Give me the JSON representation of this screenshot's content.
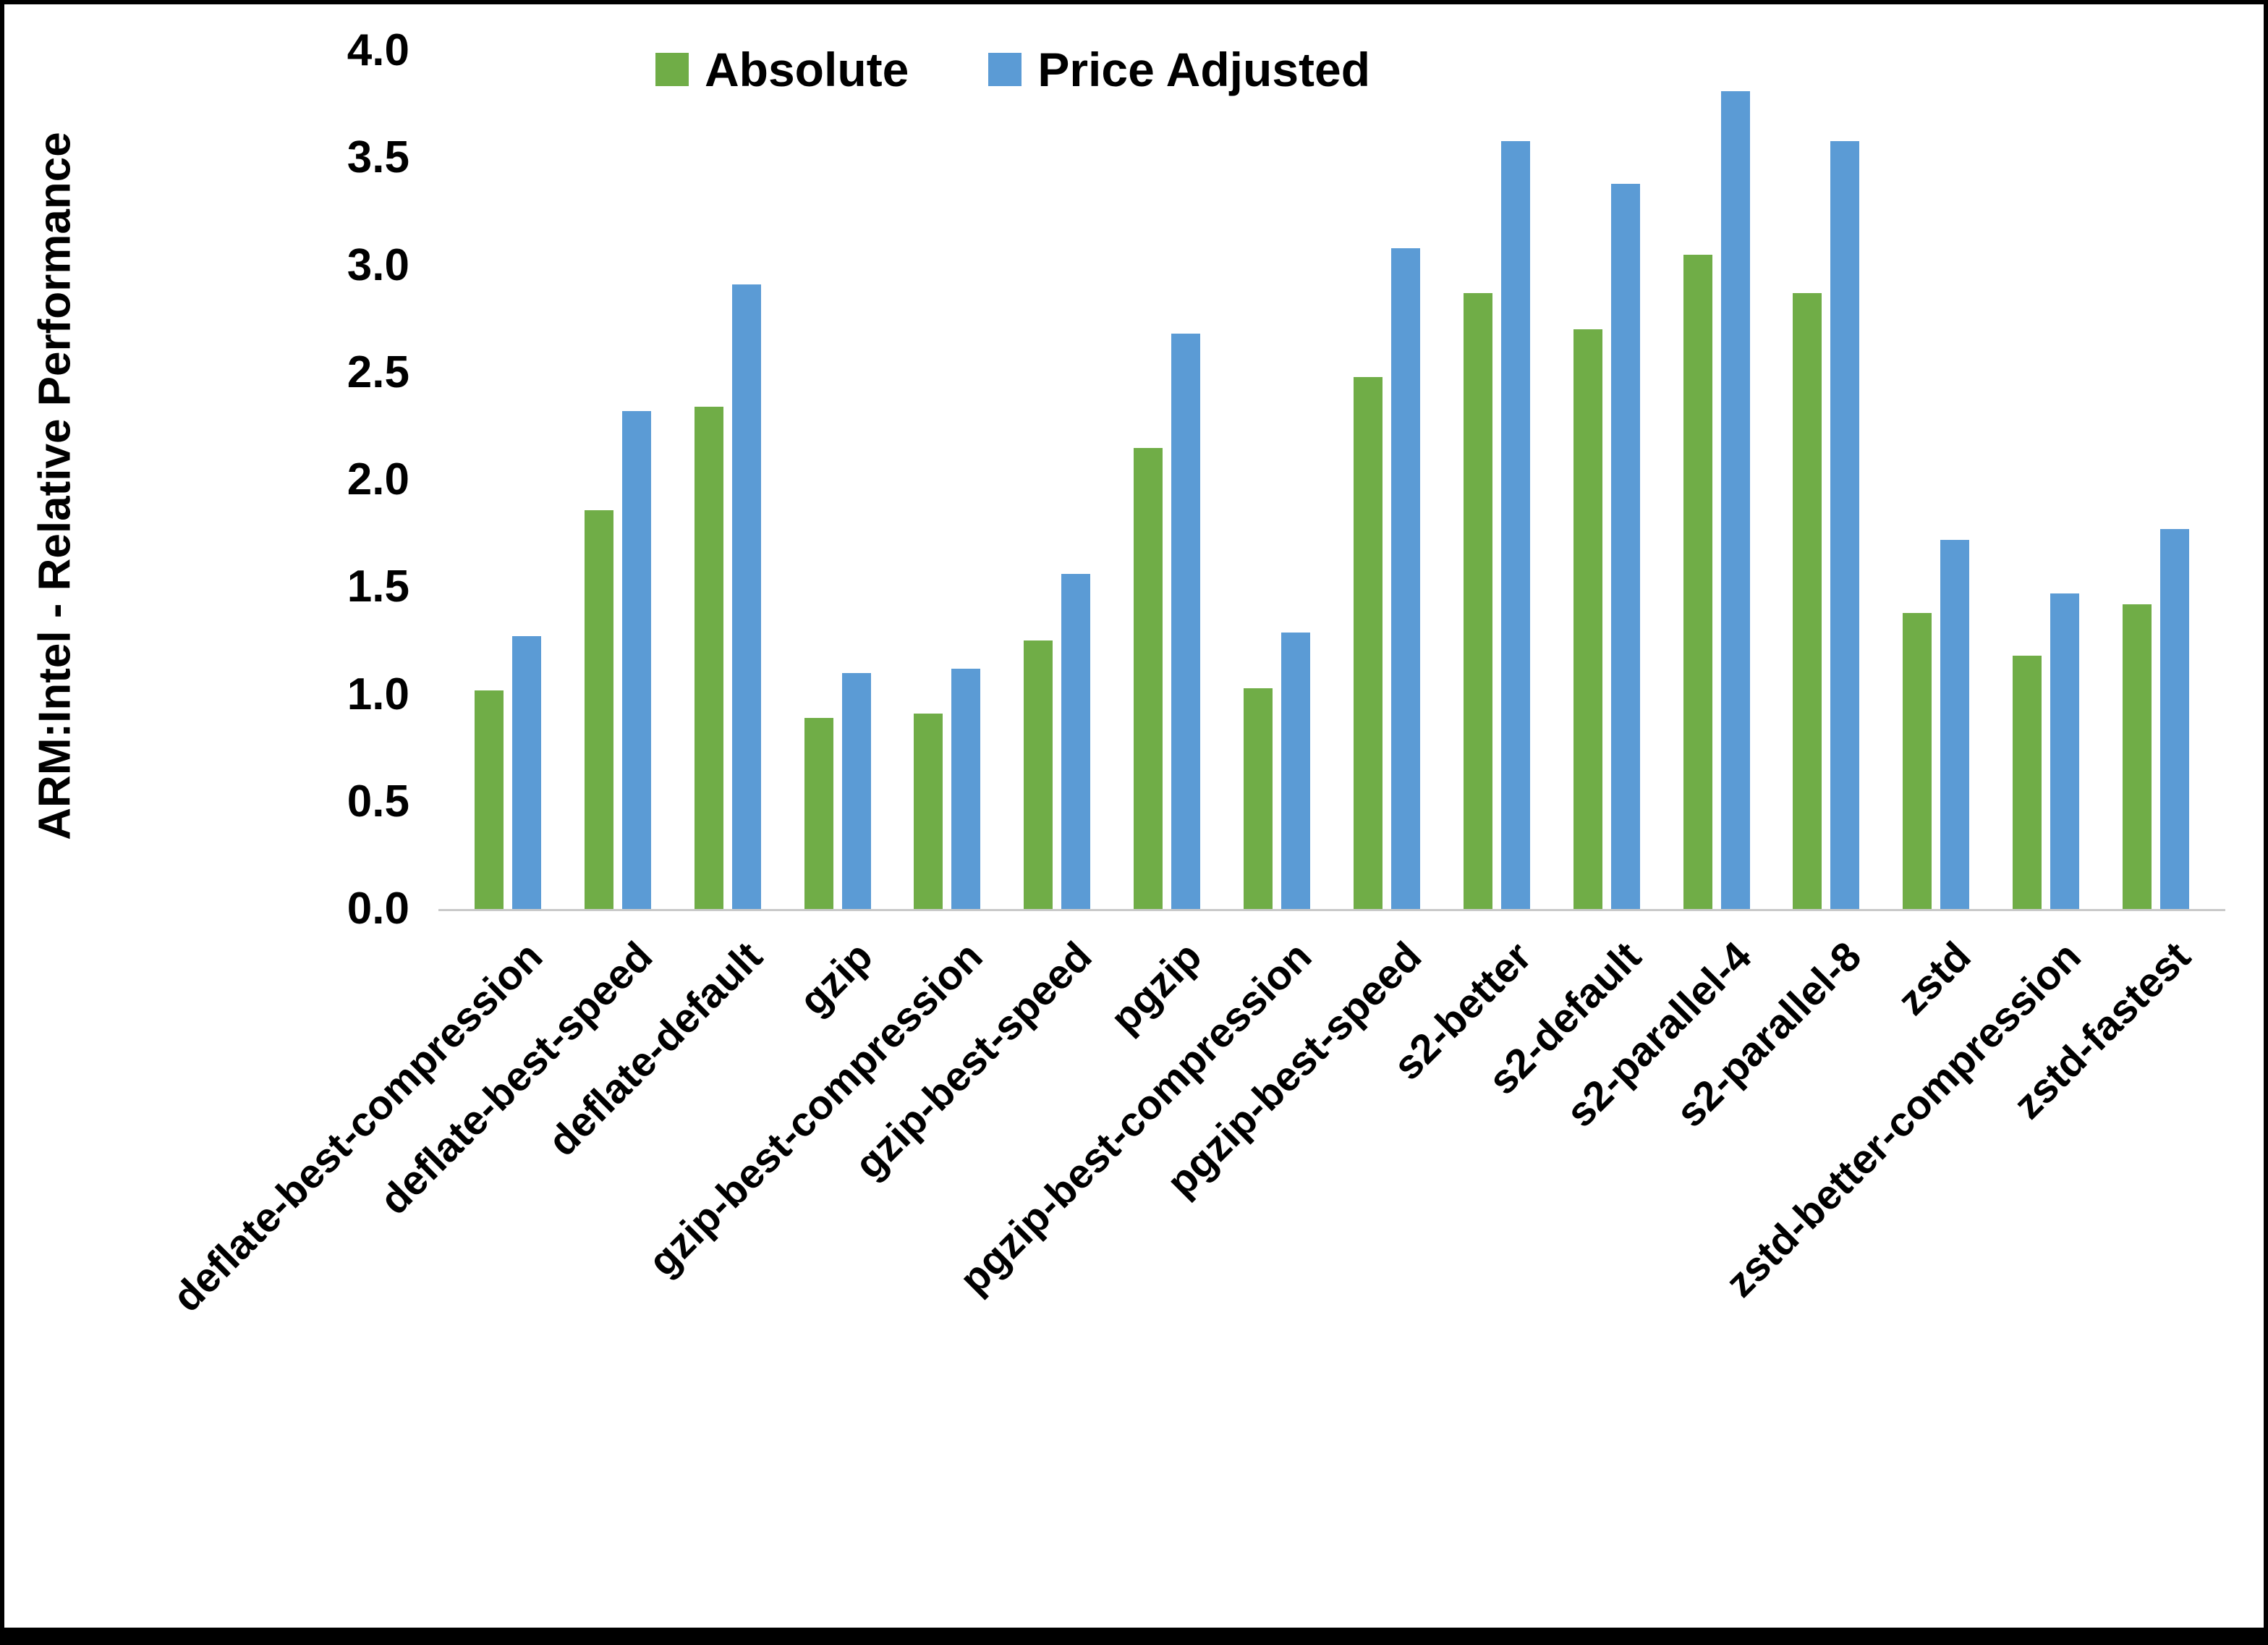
{
  "chart_data": {
    "type": "bar",
    "title": "",
    "ylabel": "ARM:Intel - Relative Performance",
    "xlabel": "",
    "ylim": [
      0,
      4.0
    ],
    "ytick_step": 0.5,
    "grid": false,
    "legend_position": "top-center",
    "categories": [
      "deflate-best-compression",
      "deflate-best-speed",
      "deflate-default",
      "gzip",
      "gzip-best-compression",
      "gzip-best-speed",
      "pgzip",
      "pgzip-best-compression",
      "pgzip-best-speed",
      "s2-better",
      "s2-default",
      "s2-parallel-4",
      "s2-parallel-8",
      "zstd",
      "zstd-better-compression",
      "zstd-fastest"
    ],
    "series": [
      {
        "name": "Absolute",
        "color": "#70AD47",
        "values": [
          1.02,
          1.86,
          2.34,
          0.89,
          0.91,
          1.25,
          2.15,
          1.03,
          2.48,
          2.87,
          2.7,
          3.05,
          2.87,
          1.38,
          1.18,
          1.42
        ]
      },
      {
        "name": "Price Adjusted",
        "color": "#5B9BD5",
        "values": [
          1.27,
          2.32,
          2.91,
          1.1,
          1.12,
          1.56,
          2.68,
          1.29,
          3.08,
          3.58,
          3.38,
          3.81,
          3.58,
          1.72,
          1.47,
          1.77
        ]
      }
    ]
  }
}
